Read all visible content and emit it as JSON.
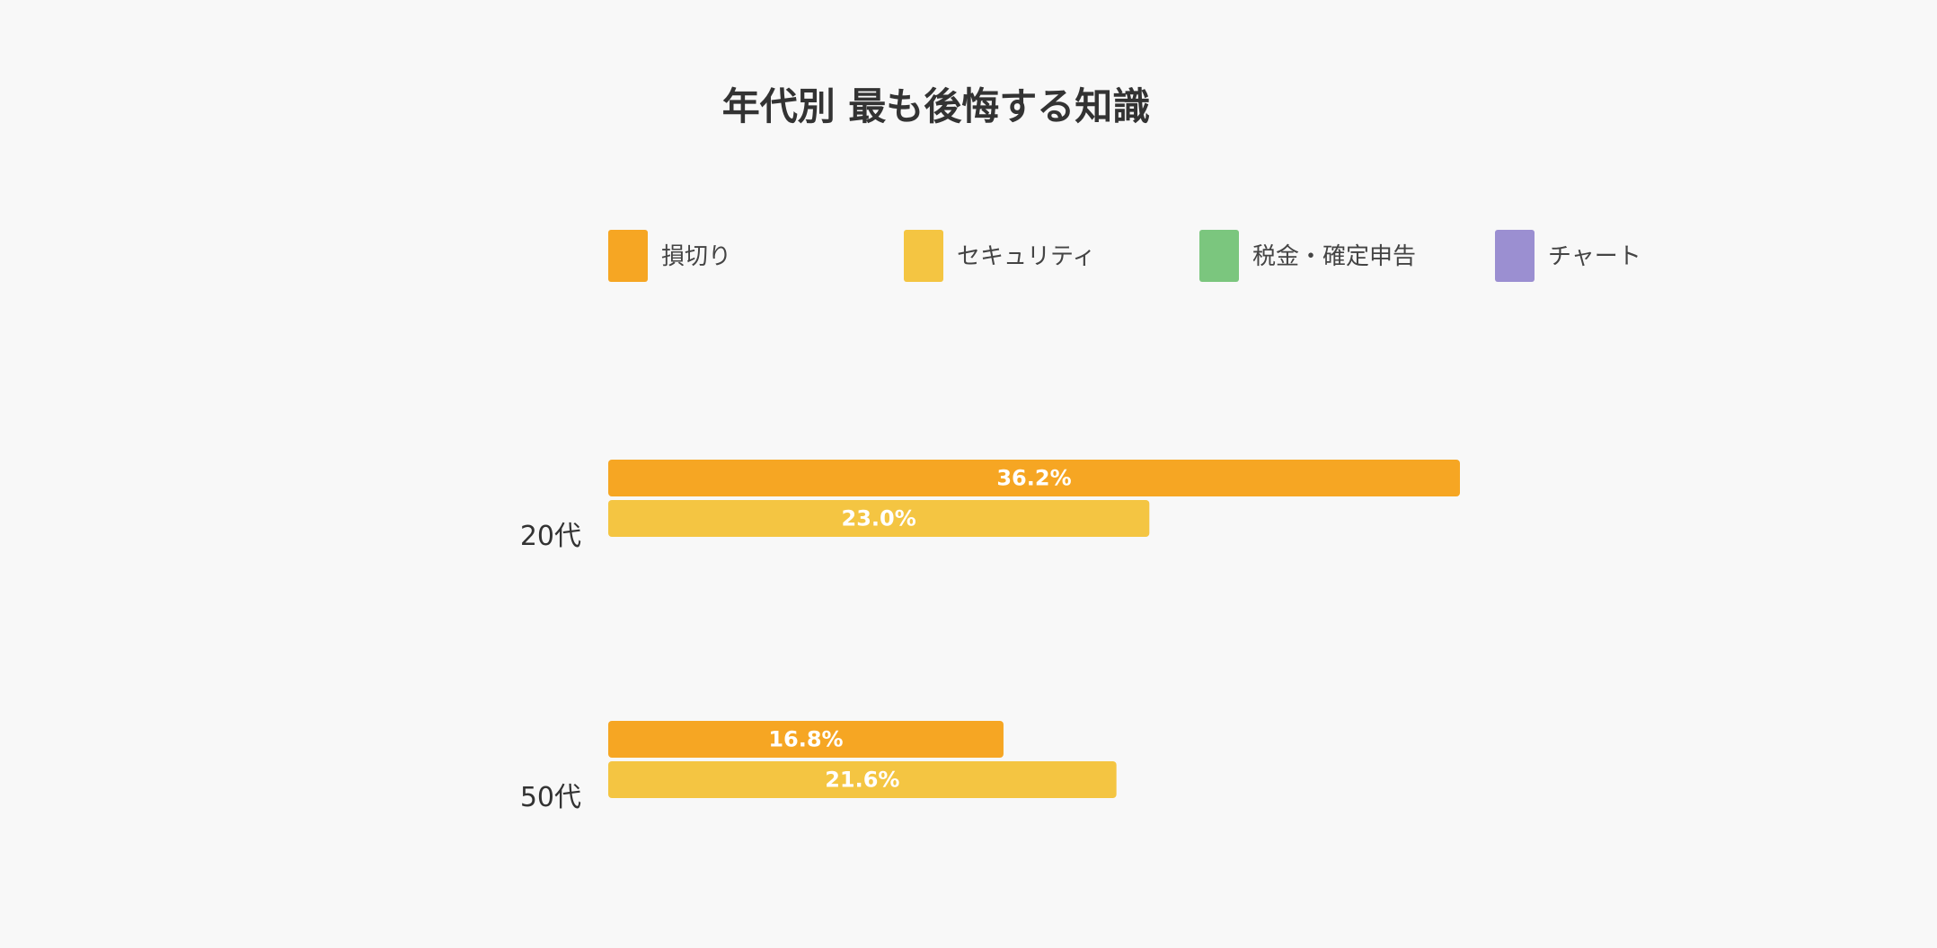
{
  "chart_data": {
    "type": "bar",
    "orientation": "horizontal",
    "title": "年代別 最も後悔する知識",
    "xlabel": "",
    "ylabel": "",
    "xlim": [
      0,
      36.2
    ],
    "grid": false,
    "legend_position": "top",
    "categories": [
      "20代",
      "50代"
    ],
    "series": [
      {
        "name": "損切り",
        "color": "#f6a623",
        "values": [
          36.2,
          16.8
        ],
        "labels": [
          "36.2%",
          "16.8%"
        ]
      },
      {
        "name": "セキュリティ",
        "color": "#f4c542",
        "values": [
          23.0,
          21.6
        ],
        "labels": [
          "23.0%",
          "21.6%"
        ]
      },
      {
        "name": "税金・確定申告",
        "color": "#7bc67e",
        "values": [
          null,
          null
        ],
        "labels": []
      },
      {
        "name": "チャート",
        "color": "#9b8fd1",
        "values": [
          null,
          null
        ],
        "labels": []
      }
    ]
  }
}
